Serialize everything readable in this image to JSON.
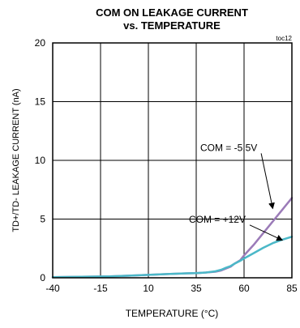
{
  "chart_data": {
    "type": "line",
    "title_line1": "COM ON LEAKAGE CURRENT",
    "title_line2": "vs. TEMPERATURE",
    "figure_id": "toc12",
    "xlabel": "TEMPERATURE (°C)",
    "ylabel": "TD+/TD- LEAKAGE CURRENT (nA)",
    "xlim": [
      -40,
      85
    ],
    "ylim": [
      0,
      20
    ],
    "xticks": [
      -40,
      -15,
      10,
      35,
      60,
      85
    ],
    "yticks": [
      0,
      5,
      10,
      15,
      20
    ],
    "grid": true,
    "series": [
      {
        "name": "COM = -5.5V",
        "color": "#9b7bb8",
        "x": [
          -40,
          -25,
          -10,
          0,
          10,
          20,
          30,
          35,
          40,
          45,
          48,
          50,
          53,
          55,
          58,
          60,
          65,
          70,
          75,
          80,
          85
        ],
        "y": [
          0.05,
          0.08,
          0.12,
          0.18,
          0.25,
          0.32,
          0.38,
          0.4,
          0.45,
          0.52,
          0.62,
          0.75,
          0.95,
          1.2,
          1.5,
          1.9,
          2.8,
          3.8,
          4.8,
          5.8,
          6.8
        ]
      },
      {
        "name": "COM = +12V",
        "color": "#4bb8c8",
        "x": [
          -40,
          -25,
          -10,
          0,
          10,
          20,
          30,
          35,
          40,
          45,
          48,
          50,
          53,
          55,
          58,
          60,
          65,
          70,
          75,
          80,
          85
        ],
        "y": [
          0.05,
          0.08,
          0.12,
          0.18,
          0.25,
          0.32,
          0.38,
          0.4,
          0.45,
          0.55,
          0.68,
          0.82,
          1.0,
          1.2,
          1.45,
          1.65,
          2.1,
          2.55,
          2.95,
          3.25,
          3.5
        ]
      }
    ],
    "annotations": [
      {
        "text": "COM = -5.5V",
        "series": 0,
        "text_at": [
          52,
          10.8
        ],
        "arrow_to": [
          75,
          5.9
        ]
      },
      {
        "text": "COM = +12V",
        "series": 1,
        "text_at": [
          46,
          4.7
        ],
        "arrow_to": [
          80,
          3.2
        ]
      }
    ]
  }
}
